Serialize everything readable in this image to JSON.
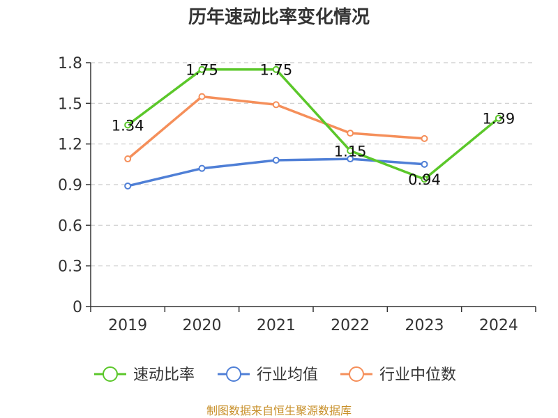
{
  "chart_data": {
    "type": "line",
    "title": "历年速动比率变化情况",
    "categories": [
      "2019",
      "2020",
      "2021",
      "2022",
      "2023",
      "2024"
    ],
    "ylim": [
      0,
      1.8
    ],
    "yticks": [
      "0",
      "0.3",
      "0.6",
      "0.9",
      "1.2",
      "1.5",
      "1.8"
    ],
    "grid": true,
    "legend_position": "bottom",
    "series": [
      {
        "name": "速动比率",
        "color": "#5bc72a",
        "values": [
          1.34,
          1.75,
          1.75,
          1.15,
          0.94,
          1.39
        ],
        "labels": [
          "1.34",
          "1.75",
          "1.75",
          "1.15",
          "0.94",
          "1.39"
        ],
        "show_labels": true
      },
      {
        "name": "行业均值",
        "color": "#4f7fd6",
        "values": [
          0.89,
          1.02,
          1.08,
          1.09,
          1.05,
          null
        ],
        "show_labels": false
      },
      {
        "name": "行业中位数",
        "color": "#f58f5a",
        "values": [
          1.09,
          1.55,
          1.49,
          1.28,
          1.24,
          null
        ],
        "show_labels": false
      }
    ],
    "source": "制图数据来自恒生聚源数据库"
  }
}
